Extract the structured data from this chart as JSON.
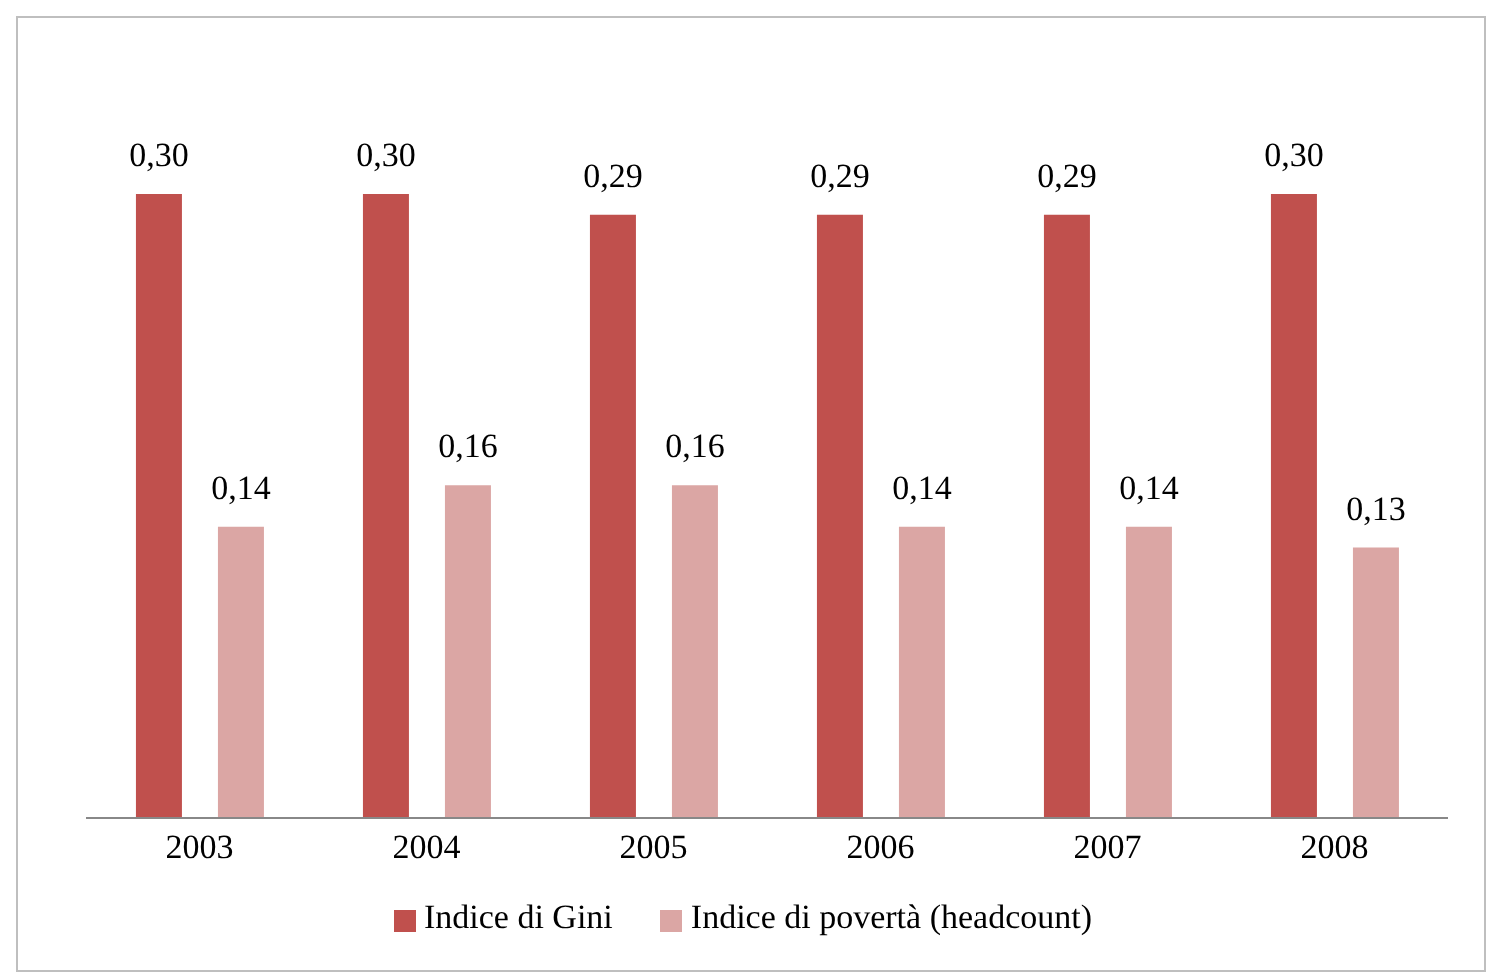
{
  "chart_data": {
    "type": "bar",
    "categories": [
      "2003",
      "2004",
      "2005",
      "2006",
      "2007",
      "2008"
    ],
    "series": [
      {
        "name": "Indice di Gini",
        "color": "#c0504d",
        "values": [
          0.3,
          0.3,
          0.29,
          0.29,
          0.29,
          0.3
        ],
        "value_labels": [
          "0,30",
          "0,30",
          "0,29",
          "0,29",
          "0,29",
          "0,30"
        ]
      },
      {
        "name": "Indice di povertà (headcount)",
        "color": "#dba6a4",
        "values": [
          0.14,
          0.16,
          0.16,
          0.14,
          0.14,
          0.13
        ],
        "value_labels": [
          "0,14",
          "0,16",
          "0,16",
          "0,14",
          "0,14",
          "0,13"
        ]
      }
    ],
    "legend": "bottom",
    "grid": false,
    "tick_labels": "x"
  }
}
